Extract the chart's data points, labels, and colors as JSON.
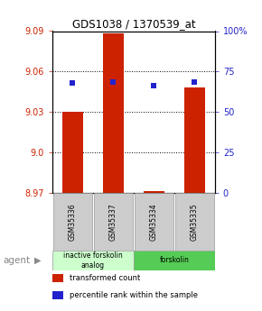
{
  "title": "GDS1038 / 1370539_at",
  "samples": [
    "GSM35336",
    "GSM35337",
    "GSM35334",
    "GSM35335"
  ],
  "bar_values": [
    9.03,
    9.088,
    8.971,
    9.048
  ],
  "percentile_values": [
    0.68,
    0.685,
    0.665,
    0.685
  ],
  "ylim": [
    8.97,
    9.09
  ],
  "yticks_left": [
    8.97,
    9.0,
    9.03,
    9.06,
    9.09
  ],
  "yticks_right": [
    0,
    25,
    50,
    75,
    100
  ],
  "ytick_right_labels": [
    "0",
    "25",
    "50",
    "75",
    "100%"
  ],
  "bar_color": "#cc2200",
  "dot_color": "#2222cc",
  "bg_color": "#ffffff",
  "left_tick_color": "#cc2200",
  "right_tick_color": "#2222cc",
  "groups": [
    {
      "label": "inactive forskolin\nanalog",
      "span": [
        0,
        2
      ],
      "color": "#ccffcc"
    },
    {
      "label": "forskolin",
      "span": [
        2,
        4
      ],
      "color": "#55cc55"
    }
  ],
  "agent_label": "agent",
  "legend_items": [
    {
      "color": "#cc2200",
      "label": "transformed count"
    },
    {
      "color": "#2222cc",
      "label": "percentile rank within the sample"
    }
  ],
  "sample_box_color": "#cccccc",
  "sample_box_edge": "#999999"
}
